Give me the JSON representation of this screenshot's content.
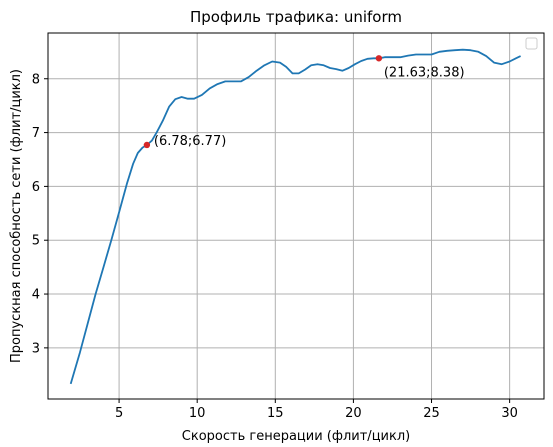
{
  "chart_data": {
    "type": "line",
    "title": "Профиль трафика: uniform",
    "xlabel": "Скорость генерации (флит/цикл)",
    "ylabel": "Пропускная способность сети (флит/цикл)",
    "xlim": [
      0.45,
      32.2
    ],
    "ylim": [
      2.05,
      8.85
    ],
    "xticks": [
      5,
      10,
      15,
      20,
      25,
      30
    ],
    "yticks": [
      3,
      4,
      5,
      6,
      7,
      8
    ],
    "grid": true,
    "legend": "top-right",
    "series": [
      {
        "color": "#1f77b4",
        "x": [
          1.9,
          2.5,
          3.0,
          3.5,
          4.0,
          4.5,
          5.0,
          5.5,
          5.9,
          6.2,
          6.5,
          6.78,
          7.1,
          7.4,
          7.8,
          8.2,
          8.6,
          9.0,
          9.4,
          9.8,
          10.3,
          10.8,
          11.3,
          11.8,
          12.3,
          12.8,
          13.3,
          13.8,
          14.3,
          14.8,
          15.3,
          15.7,
          16.1,
          16.5,
          16.9,
          17.3,
          17.7,
          18.1,
          18.5,
          18.9,
          19.3,
          19.7,
          20.1,
          20.5,
          20.9,
          21.3,
          21.63,
          22.0,
          22.5,
          23.0,
          23.5,
          24.0,
          24.5,
          25.0,
          25.5,
          26.0,
          26.5,
          27.0,
          27.5,
          28.0,
          28.5,
          29.0,
          29.5,
          30.0,
          30.4,
          30.7
        ],
        "y": [
          2.33,
          2.92,
          3.46,
          4.0,
          4.5,
          5.0,
          5.52,
          6.05,
          6.42,
          6.62,
          6.72,
          6.77,
          6.85,
          7.0,
          7.22,
          7.48,
          7.62,
          7.66,
          7.63,
          7.63,
          7.7,
          7.82,
          7.9,
          7.95,
          7.95,
          7.95,
          8.03,
          8.15,
          8.25,
          8.32,
          8.3,
          8.22,
          8.1,
          8.1,
          8.17,
          8.25,
          8.27,
          8.25,
          8.2,
          8.18,
          8.15,
          8.2,
          8.27,
          8.33,
          8.37,
          8.38,
          8.38,
          8.4,
          8.4,
          8.4,
          8.43,
          8.45,
          8.45,
          8.45,
          8.5,
          8.52,
          8.53,
          8.54,
          8.53,
          8.5,
          8.42,
          8.3,
          8.27,
          8.32,
          8.38,
          8.42
        ]
      }
    ],
    "markers": [
      {
        "x": 6.78,
        "y": 6.77,
        "label": "(6.78;6.77)",
        "color": "#d62728"
      },
      {
        "x": 21.63,
        "y": 8.38,
        "label": "(21.63;8.38)",
        "color": "#d62728"
      }
    ]
  }
}
